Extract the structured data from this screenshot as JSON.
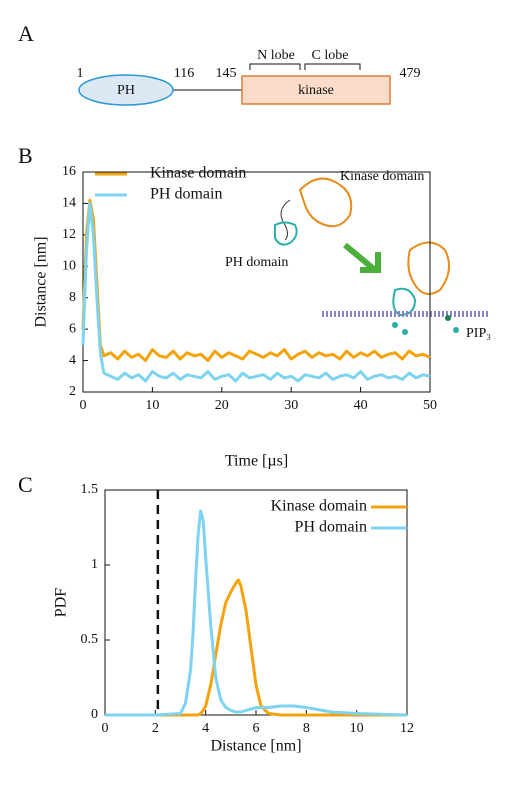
{
  "panel_labels": [
    "A",
    "B",
    "C"
  ],
  "domain_diagram": {
    "domains": [
      "PH",
      "kinase"
    ],
    "positions": [
      "1",
      "116",
      "145",
      "479"
    ],
    "lobes": [
      "N lobe",
      "C lobe"
    ]
  },
  "chart_data": [
    {
      "type": "line",
      "xlabel": "Time [µs]",
      "ylabel": "Distance [nm]",
      "annotations": [
        "Kinase domain",
        "PH domain",
        "PIP₃"
      ],
      "legend": "upper left",
      "xlim": [
        0,
        50
      ],
      "xticks": [
        0,
        10,
        20,
        30,
        40,
        50
      ],
      "ylim": [
        2,
        16
      ],
      "yticks": [
        2,
        4,
        6,
        8,
        10,
        12,
        14,
        16
      ],
      "x": [
        0,
        0.5,
        1,
        1.5,
        2,
        2.5,
        3,
        4,
        5,
        6,
        7,
        8,
        9,
        10,
        11,
        12,
        13,
        14,
        15,
        16,
        17,
        18,
        19,
        20,
        21,
        22,
        23,
        24,
        25,
        26,
        27,
        28,
        29,
        30,
        31,
        32,
        33,
        34,
        35,
        36,
        37,
        38,
        39,
        40,
        41,
        42,
        43,
        44,
        45,
        46,
        47,
        48,
        49,
        50
      ],
      "series": [
        {
          "name": "Kinase domain",
          "color": "#f5a30c",
          "values": [
            6,
            12,
            14.2,
            13,
            9,
            5,
            4.3,
            4.5,
            4.1,
            4.6,
            4.2,
            4.4,
            4.0,
            4.7,
            4.3,
            4.2,
            4.6,
            4.1,
            4.5,
            4.3,
            4.4,
            4.0,
            4.6,
            4.2,
            4.5,
            4.3,
            4.1,
            4.6,
            4.4,
            4.2,
            4.5,
            4.3,
            4.7,
            4.1,
            4.4,
            4.6,
            4.2,
            4.5,
            4.3,
            4.4,
            4.1,
            4.6,
            4.2,
            4.5,
            4.3,
            4.6,
            4.2,
            4.4,
            4.5,
            4.1,
            4.6,
            4.3,
            4.4,
            4.2
          ]
        },
        {
          "name": "PH domain",
          "color": "#7dd3f0",
          "values": [
            5,
            11,
            14,
            12,
            8,
            4.5,
            3.2,
            3.0,
            2.8,
            3.2,
            2.9,
            3.1,
            2.7,
            3.3,
            3.0,
            2.9,
            3.2,
            2.8,
            3.1,
            3.0,
            2.9,
            3.3,
            2.8,
            3.0,
            3.1,
            2.7,
            3.2,
            2.9,
            3.0,
            3.1,
            2.8,
            3.2,
            2.9,
            3.0,
            2.7,
            3.1,
            3.0,
            2.9,
            3.2,
            2.8,
            3.0,
            3.1,
            2.9,
            3.3,
            2.8,
            3.0,
            3.1,
            2.9,
            3.0,
            2.8,
            3.2,
            2.9,
            3.1,
            3.0
          ]
        }
      ]
    },
    {
      "type": "line",
      "xlabel": "Distance [nm]",
      "ylabel": "PDF",
      "legend": "upper right",
      "vline": 2.1,
      "xlim": [
        0,
        12
      ],
      "xticks": [
        0,
        2,
        4,
        6,
        8,
        10,
        12
      ],
      "ylim": [
        0,
        1.5
      ],
      "yticks": [
        0,
        0.5,
        1,
        1.5
      ],
      "x": [
        0,
        1,
        2,
        3,
        3.2,
        3.4,
        3.5,
        3.6,
        3.7,
        3.8,
        3.9,
        4.0,
        4.2,
        4.4,
        4.6,
        4.8,
        5.0,
        5.2,
        5.3,
        5.4,
        5.6,
        5.8,
        6.0,
        6.2,
        6.5,
        7,
        7.5,
        8,
        9,
        10,
        12
      ],
      "series": [
        {
          "name": "Kinase domain",
          "color": "#f5a30c",
          "values": [
            0,
            0,
            0,
            0,
            0,
            0,
            0,
            0,
            0,
            0.01,
            0.03,
            0.06,
            0.2,
            0.4,
            0.6,
            0.75,
            0.82,
            0.88,
            0.9,
            0.86,
            0.7,
            0.45,
            0.2,
            0.06,
            0.01,
            0,
            0,
            0,
            0,
            0,
            0
          ]
        },
        {
          "name": "PH domain",
          "color": "#7dd3f0",
          "values": [
            0,
            0,
            0,
            0.01,
            0.08,
            0.3,
            0.55,
            0.9,
            1.2,
            1.36,
            1.3,
            1.05,
            0.6,
            0.25,
            0.1,
            0.05,
            0.03,
            0.02,
            0.02,
            0.02,
            0.03,
            0.04,
            0.05,
            0.05,
            0.05,
            0.06,
            0.06,
            0.05,
            0.02,
            0.01,
            0
          ]
        }
      ]
    }
  ]
}
